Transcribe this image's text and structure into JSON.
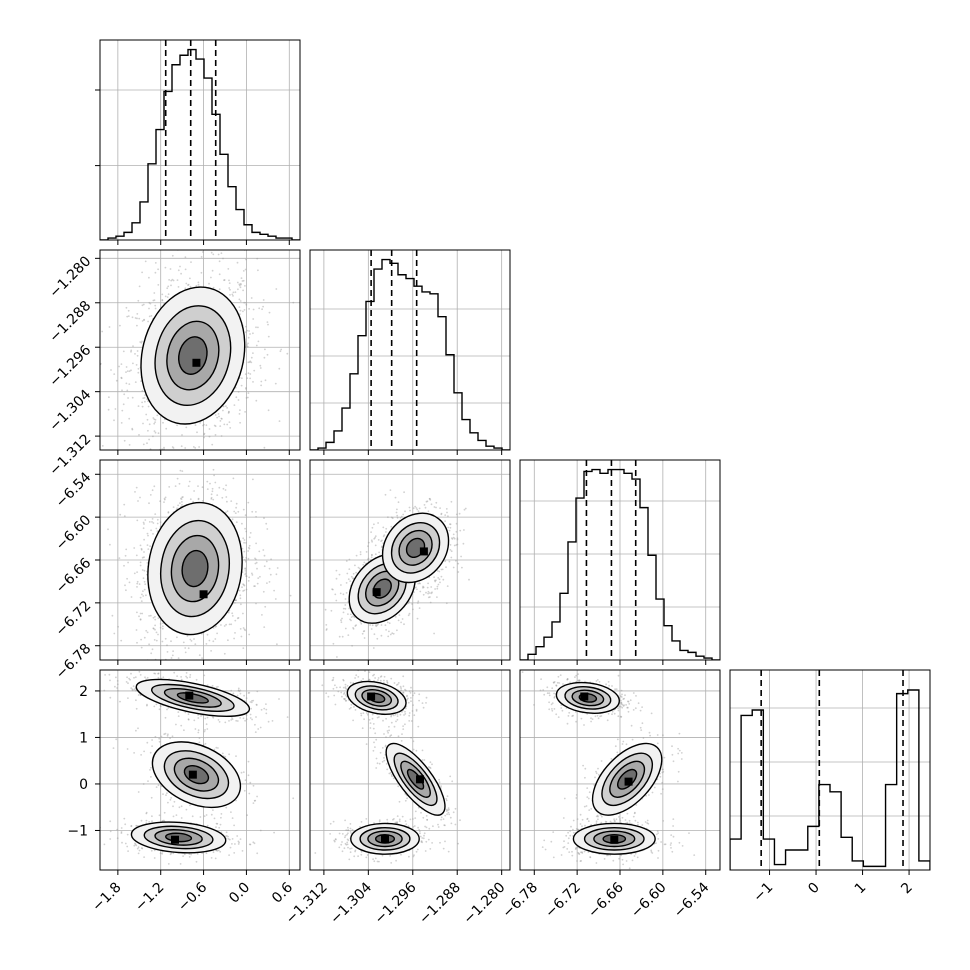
{
  "chart_data": {
    "type": "corner",
    "description_of_params": 4,
    "ranges": [
      [
        -2.05,
        0.75
      ],
      [
        -1.3145,
        -1.2785
      ],
      [
        -6.8,
        -6.52
      ],
      [
        -1.85,
        2.45
      ]
    ],
    "yranges": [
      null,
      [
        -1.3145,
        -1.2785
      ],
      [
        -6.8,
        -6.52
      ],
      [
        -1.85,
        2.45
      ]
    ],
    "ticks": [
      [
        -1.8,
        -1.2,
        -0.6,
        0.0,
        0.6
      ],
      [
        -1.312,
        -1.304,
        -1.296,
        -1.288,
        -1.28
      ],
      [
        -6.78,
        -6.72,
        -6.66,
        -6.6,
        -6.54
      ],
      [
        -1,
        0,
        1,
        2
      ]
    ],
    "tick_labels": [
      [
        "−1.8",
        "−1.2",
        "−0.6",
        "0.0",
        "0.6"
      ],
      [
        "−1.312",
        "−1.304",
        "−1.296",
        "−1.288",
        "−1.280"
      ],
      [
        "−6.78",
        "−6.72",
        "−6.66",
        "−6.60",
        "−6.54"
      ],
      [
        "−1",
        "0",
        "1",
        "2"
      ]
    ],
    "quantiles": [
      [
        -1.13,
        -0.78,
        -0.43
      ],
      [
        -1.3035,
        -1.2998,
        -1.2953
      ],
      [
        -6.707,
        -6.672,
        -6.638
      ],
      [
        -1.18,
        0.07,
        1.87
      ]
    ],
    "histograms": [
      [
        0,
        1,
        2,
        4,
        9,
        20,
        40,
        58,
        78,
        92,
        97,
        100,
        95,
        85,
        66,
        45,
        28,
        16,
        8,
        4,
        3,
        2,
        1,
        1,
        0
      ],
      [
        0,
        1,
        4,
        10,
        22,
        40,
        60,
        78,
        95,
        100,
        98,
        92,
        90,
        86,
        83,
        82,
        70,
        50,
        30,
        16,
        9,
        5,
        2,
        1,
        0
      ],
      [
        0,
        3,
        7,
        12,
        20,
        35,
        62,
        85,
        99,
        100,
        98,
        100,
        100,
        98,
        95,
        80,
        55,
        32,
        18,
        10,
        5,
        4,
        2,
        1,
        0
      ],
      [
        17,
        85,
        88,
        17,
        3,
        11,
        11,
        24,
        47,
        43,
        18,
        5,
        2,
        2,
        47,
        97,
        99,
        5
      ]
    ],
    "hist_ymax": [
      1.05,
      1.05,
      1.05,
      1.1
    ],
    "hist_ytick_fractions": [
      [
        0.372,
        0.75
      ],
      [
        0.235,
        0.47,
        0.705
      ],
      [
        0.265,
        0.53,
        0.795
      ],
      [
        0.27,
        0.54,
        0.81
      ]
    ],
    "pairs": [
      {
        "i": 1,
        "j": 0,
        "blobs": [
          {
            "mx": -0.75,
            "my": -1.2975,
            "sx": 0.33,
            "sy": 0.0056,
            "rho": 0.15,
            "w": 1.0,
            "peak": [
              -0.7,
              -1.2988
            ]
          }
        ]
      },
      {
        "i": 2,
        "j": 0,
        "blobs": [
          {
            "mx": -0.72,
            "my": -6.672,
            "sx": 0.3,
            "sy": 0.042,
            "rho": 0.1,
            "w": 1.0,
            "peak": [
              -0.6,
              -6.708
            ]
          }
        ]
      },
      {
        "i": 2,
        "j": 1,
        "blobs": [
          {
            "mx": -1.3015,
            "my": -6.7,
            "sx": 0.0027,
            "sy": 0.022,
            "rho": 0.3,
            "w": 0.55,
            "peak": [
              -1.3025,
              -6.705
            ]
          },
          {
            "mx": -1.2955,
            "my": -6.643,
            "sx": 0.0027,
            "sy": 0.022,
            "rho": 0.2,
            "w": 0.45,
            "peak": [
              -1.294,
              -6.648
            ]
          }
        ]
      },
      {
        "i": 3,
        "j": 0,
        "blobs": [
          {
            "mx": -0.75,
            "my": 1.85,
            "sx": 0.36,
            "sy": 0.18,
            "rho": -0.6,
            "w": 0.4,
            "peak": [
              -0.8,
              1.9
            ]
          },
          {
            "mx": -0.7,
            "my": 0.2,
            "sx": 0.28,
            "sy": 0.32,
            "rho": -0.35,
            "w": 0.25,
            "peak": [
              -0.75,
              0.2
            ]
          },
          {
            "mx": -0.95,
            "my": -1.15,
            "sx": 0.3,
            "sy": 0.15,
            "rho": -0.2,
            "w": 0.35,
            "peak": [
              -1.0,
              -1.2
            ]
          }
        ]
      },
      {
        "i": 3,
        "j": 1,
        "blobs": [
          {
            "mx": -1.3025,
            "my": 1.85,
            "sx": 0.0024,
            "sy": 0.16,
            "rho": -0.3,
            "w": 0.4,
            "peak": [
              -1.3035,
              1.88
            ]
          },
          {
            "mx": -1.2955,
            "my": 0.1,
            "sx": 0.0024,
            "sy": 0.35,
            "rho": -0.75,
            "w": 0.25,
            "peak": [
              -1.2947,
              0.1
            ]
          },
          {
            "mx": -1.301,
            "my": -1.18,
            "sx": 0.0028,
            "sy": 0.15,
            "rho": 0.0,
            "w": 0.35,
            "peak": [
              -1.301,
              -1.18
            ]
          }
        ]
      },
      {
        "i": 3,
        "j": 2,
        "blobs": [
          {
            "mx": -6.705,
            "my": 1.85,
            "sx": 0.02,
            "sy": 0.15,
            "rho": -0.2,
            "w": 0.4,
            "peak": [
              -6.71,
              1.88
            ]
          },
          {
            "mx": -6.65,
            "my": 0.1,
            "sx": 0.022,
            "sy": 0.35,
            "rho": 0.55,
            "w": 0.25,
            "peak": [
              -6.648,
              0.05
            ]
          },
          {
            "mx": -6.668,
            "my": -1.18,
            "sx": 0.026,
            "sy": 0.15,
            "rho": 0.0,
            "w": 0.35,
            "peak": [
              -6.668,
              -1.2
            ]
          }
        ]
      }
    ],
    "grid": true,
    "colors": {
      "line": "#000000",
      "grid": "#b0b0b0",
      "scatter": "#9a9a9a",
      "frame": "#000000"
    }
  }
}
